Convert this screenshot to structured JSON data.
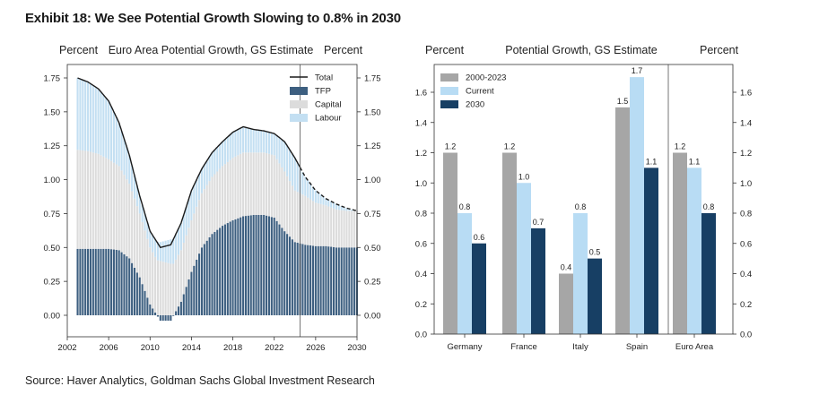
{
  "title": "Exhibit 18: We See Potential Growth Slowing to 0.8% in 2030",
  "source": "Source: Haver Analytics, Goldman Sachs Global Investment Research",
  "colors": {
    "total": "#1a1a1a",
    "tfp": "#3d5f80",
    "capital": "#dcdcdc",
    "labour": "#c3dff2",
    "grey": "#a6a6a6",
    "light_blue": "#b8dcf4",
    "navy": "#173f64"
  },
  "chart_data": [
    {
      "type": "area",
      "title": "Euro Area Potential Growth, GS Estimate",
      "ylabel_left": "Percent",
      "ylabel_right": "Percent",
      "xlim": [
        2002,
        2030
      ],
      "ylim": [
        -0.1,
        1.8
      ],
      "x_ticks": [
        "2002",
        "2006",
        "2010",
        "2014",
        "2018",
        "2022",
        "2026",
        "2030"
      ],
      "y_ticks": [
        "0.00",
        "0.25",
        "0.50",
        "0.75",
        "1.00",
        "1.25",
        "1.50",
        "1.75"
      ],
      "forecast_start": 2024.5,
      "legend": [
        "Total",
        "TFP",
        "Capital",
        "Labour"
      ],
      "legend_position": "top-right",
      "x": [
        2003,
        2004,
        2005,
        2006,
        2007,
        2008,
        2009,
        2010,
        2011,
        2012,
        2013,
        2014,
        2015,
        2016,
        2017,
        2018,
        2019,
        2020,
        2021,
        2022,
        2023,
        2024,
        2025,
        2026,
        2027,
        2028,
        2029,
        2030
      ],
      "series": [
        {
          "name": "Total",
          "values": [
            1.75,
            1.72,
            1.67,
            1.58,
            1.42,
            1.18,
            0.88,
            0.62,
            0.5,
            0.52,
            0.68,
            0.92,
            1.08,
            1.2,
            1.28,
            1.35,
            1.39,
            1.37,
            1.36,
            1.34,
            1.28,
            1.16,
            1.02,
            0.92,
            0.86,
            0.82,
            0.79,
            0.77
          ]
        },
        {
          "name": "TFP",
          "values": [
            0.49,
            0.49,
            0.49,
            0.49,
            0.48,
            0.42,
            0.28,
            0.08,
            -0.04,
            -0.04,
            0.1,
            0.32,
            0.5,
            0.6,
            0.66,
            0.7,
            0.73,
            0.74,
            0.74,
            0.72,
            0.62,
            0.54,
            0.52,
            0.51,
            0.51,
            0.5,
            0.5,
            0.5
          ]
        },
        {
          "name": "Capital",
          "values": [
            0.73,
            0.72,
            0.7,
            0.66,
            0.62,
            0.55,
            0.47,
            0.42,
            0.4,
            0.38,
            0.38,
            0.38,
            0.4,
            0.42,
            0.44,
            0.46,
            0.47,
            0.46,
            0.46,
            0.46,
            0.44,
            0.38,
            0.36,
            0.32,
            0.3,
            0.28,
            0.27,
            0.27
          ]
        },
        {
          "name": "Labour",
          "values": [
            0.53,
            0.51,
            0.48,
            0.43,
            0.32,
            0.21,
            0.13,
            0.12,
            0.14,
            0.18,
            0.2,
            0.22,
            0.18,
            0.18,
            0.18,
            0.19,
            0.19,
            0.17,
            0.16,
            0.16,
            0.22,
            0.24,
            0.14,
            0.09,
            0.05,
            0.04,
            0.02,
            0.0
          ]
        }
      ]
    },
    {
      "type": "bar",
      "title": "Potential Growth, GS Estimate",
      "ylabel_left": "Percent",
      "ylabel_right": "Percent",
      "ylim": [
        0,
        1.8
      ],
      "y_ticks": [
        "0.0",
        "0.2",
        "0.4",
        "0.6",
        "0.8",
        "1.0",
        "1.2",
        "1.4",
        "1.6"
      ],
      "legend_position": "top-left",
      "categories": [
        "Germany",
        "France",
        "Italy",
        "Spain",
        "Euro Area"
      ],
      "series": [
        {
          "name": "2000-2023",
          "values": [
            1.2,
            1.2,
            0.4,
            1.5,
            1.2
          ]
        },
        {
          "name": "Current",
          "values": [
            0.8,
            1.0,
            0.8,
            1.7,
            1.1
          ]
        },
        {
          "name": "2030",
          "values": [
            0.6,
            0.7,
            0.5,
            1.1,
            0.8
          ]
        }
      ]
    }
  ]
}
